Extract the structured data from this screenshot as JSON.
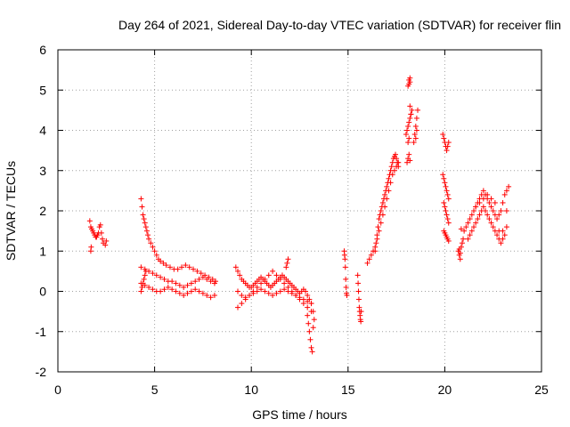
{
  "chart_data": {
    "type": "scatter",
    "title": "Day 264 of 2021, Sidereal Day-to-day VTEC variation (SDTVAR) for receiver flin",
    "xlabel": "GPS time / hours",
    "ylabel": "SDTVAR / TECUs",
    "xlim": [
      0,
      25
    ],
    "ylim": [
      -2,
      6
    ],
    "xticks": [
      0,
      5,
      10,
      15,
      20,
      25
    ],
    "yticks": [
      -2,
      -1,
      0,
      1,
      2,
      3,
      4,
      5,
      6
    ],
    "xtick_labels": [
      "0",
      "5",
      "10",
      "15",
      "20",
      "25"
    ],
    "ytick_labels": [
      "-2",
      "-1",
      "0",
      "1",
      "2",
      "3",
      "4",
      "5",
      "6"
    ],
    "grid": true,
    "marker": "+",
    "color": "#ff0000",
    "series": [
      {
        "name": "SDTVAR",
        "x": [
          1.65,
          1.7,
          1.75,
          1.8,
          1.85,
          1.9,
          1.95,
          2.0,
          2.05,
          2.1,
          2.15,
          2.2,
          2.25,
          2.3,
          2.35,
          2.45,
          2.5,
          1.7,
          1.72,
          4.3,
          4.35,
          4.4,
          4.45,
          4.5,
          4.55,
          4.6,
          4.65,
          4.7,
          4.8,
          4.9,
          5.0,
          5.1,
          5.2,
          5.3,
          5.45,
          5.6,
          5.8,
          6.0,
          6.2,
          6.4,
          6.6,
          6.8,
          7.0,
          7.2,
          7.4,
          7.6,
          7.8,
          8.0,
          8.15,
          4.3,
          4.5,
          4.7,
          4.9,
          5.1,
          5.3,
          5.5,
          5.7,
          5.9,
          6.1,
          6.3,
          6.5,
          6.7,
          6.9,
          7.1,
          7.3,
          7.5,
          7.7,
          7.9,
          8.1,
          4.3,
          4.5,
          4.7,
          4.9,
          5.1,
          5.3,
          5.5,
          5.7,
          5.9,
          6.1,
          6.3,
          6.5,
          6.7,
          6.9,
          7.1,
          7.3,
          7.5,
          7.7,
          7.9,
          8.1,
          4.3,
          4.35,
          4.4,
          4.45,
          4.5,
          4.55,
          9.2,
          9.3,
          9.4,
          9.5,
          9.6,
          9.7,
          9.8,
          9.9,
          10.0,
          10.1,
          10.2,
          10.3,
          10.4,
          10.5,
          10.6,
          10.7,
          10.8,
          10.9,
          11.0,
          11.1,
          11.2,
          11.3,
          11.4,
          11.5,
          11.6,
          11.7,
          11.8,
          11.9,
          12.0,
          12.1,
          12.2,
          12.3,
          12.4,
          12.5,
          12.6,
          12.7,
          12.8,
          12.9,
          13.0,
          13.1,
          13.2,
          9.3,
          9.5,
          9.7,
          9.9,
          10.1,
          10.3,
          10.5,
          10.7,
          10.9,
          11.1,
          11.3,
          11.5,
          11.7,
          11.9,
          12.1,
          12.3,
          12.5,
          12.7,
          12.9,
          13.1,
          9.3,
          9.5,
          9.7,
          9.9,
          10.1,
          10.3,
          10.5,
          10.7,
          10.9,
          11.1,
          11.3,
          11.5,
          11.7,
          11.9,
          12.1,
          12.3,
          12.5,
          12.7,
          12.9,
          13.1,
          12.9,
          12.95,
          13.0,
          13.05,
          13.1,
          13.15,
          13.2,
          13.25,
          11.8,
          11.85,
          11.9,
          14.8,
          14.82,
          14.84,
          14.86,
          14.88,
          14.9,
          14.92,
          14.94,
          15.5,
          15.52,
          15.54,
          15.56,
          15.58,
          15.6,
          15.62,
          15.64,
          15.66,
          15.68,
          16.0,
          16.1,
          16.2,
          16.3,
          16.4,
          16.5,
          16.6,
          16.7,
          16.8,
          16.9,
          17.0,
          17.1,
          17.2,
          17.3,
          17.4,
          17.5,
          17.6,
          16.4,
          16.45,
          16.5,
          16.55,
          16.6,
          16.65,
          16.7,
          16.75,
          16.8,
          16.85,
          16.9,
          16.95,
          17.0,
          17.05,
          17.1,
          17.15,
          17.2,
          17.25,
          17.3,
          17.35,
          17.4,
          17.45,
          17.5,
          17.55,
          17.6,
          18.0,
          18.05,
          18.1,
          18.15,
          18.2,
          18.25,
          18.3,
          18.05,
          18.1,
          18.15,
          18.2,
          18.1,
          18.15,
          18.2,
          18.15,
          18.2,
          18.2,
          18.25,
          18.1,
          18.15,
          18.4,
          18.45,
          18.5,
          18.55,
          18.6,
          18.5,
          18.55,
          19.9,
          19.95,
          20.0,
          20.05,
          20.1,
          20.15,
          20.2,
          19.9,
          19.95,
          20.0,
          20.05,
          20.1,
          20.15,
          20.2,
          19.95,
          20.0,
          20.05,
          20.1,
          20.15,
          20.2,
          19.95,
          20.0,
          20.05,
          20.1,
          20.15,
          20.2,
          20.7,
          20.75,
          20.8,
          20.85,
          20.9,
          20.95,
          21.0,
          20.75,
          20.8,
          20.85,
          21.1,
          21.2,
          21.3,
          21.4,
          21.5,
          21.6,
          21.7,
          21.8,
          21.9,
          22.0,
          22.1,
          22.2,
          22.3,
          22.4,
          22.5,
          22.6,
          22.7,
          22.8,
          22.9,
          23.0,
          23.1,
          23.2,
          23.3,
          21.2,
          21.3,
          21.4,
          21.5,
          21.6,
          21.7,
          21.8,
          21.9,
          22.0,
          22.1,
          22.2,
          22.3,
          22.4,
          22.5,
          22.6,
          22.7,
          22.8,
          22.9,
          23.0,
          23.1,
          23.2,
          21.6,
          21.8,
          22.0,
          22.2,
          22.4,
          22.6,
          22.8,
          23.0,
          23.2
        ],
        "y": [
          1.75,
          1.6,
          1.55,
          1.5,
          1.45,
          1.4,
          1.35,
          1.35,
          1.4,
          1.45,
          1.6,
          1.65,
          1.45,
          1.3,
          1.2,
          1.15,
          1.25,
          1.0,
          1.1,
          2.3,
          2.1,
          1.9,
          1.8,
          1.7,
          1.6,
          1.5,
          1.4,
          1.3,
          1.2,
          1.1,
          1.0,
          0.9,
          0.8,
          0.75,
          0.7,
          0.65,
          0.6,
          0.55,
          0.55,
          0.6,
          0.65,
          0.6,
          0.55,
          0.5,
          0.45,
          0.4,
          0.35,
          0.3,
          0.25,
          0.6,
          0.55,
          0.5,
          0.45,
          0.4,
          0.35,
          0.3,
          0.25,
          0.25,
          0.2,
          0.15,
          0.1,
          0.15,
          0.2,
          0.25,
          0.3,
          0.35,
          0.3,
          0.25,
          0.2,
          0.2,
          0.15,
          0.1,
          0.05,
          0.0,
          0.0,
          0.05,
          0.1,
          0.05,
          0.0,
          -0.05,
          -0.1,
          -0.05,
          0.0,
          0.05,
          0.0,
          -0.05,
          -0.1,
          -0.15,
          -0.1,
          0.0,
          0.1,
          0.2,
          0.3,
          0.4,
          0.5,
          0.6,
          0.5,
          0.4,
          0.3,
          0.25,
          0.2,
          0.15,
          0.1,
          0.1,
          0.15,
          0.2,
          0.25,
          0.3,
          0.35,
          0.3,
          0.25,
          0.2,
          0.15,
          0.1,
          0.15,
          0.2,
          0.25,
          0.3,
          0.35,
          0.4,
          0.35,
          0.3,
          0.25,
          0.2,
          0.15,
          0.1,
          0.05,
          0.0,
          -0.05,
          0.0,
          0.05,
          0.0,
          -0.1,
          -0.2,
          -0.3,
          -0.5,
          0.0,
          -0.1,
          -0.15,
          -0.1,
          -0.05,
          0.0,
          0.05,
          0.0,
          -0.05,
          -0.1,
          -0.05,
          0.0,
          0.05,
          0.0,
          -0.05,
          -0.1,
          -0.15,
          -0.2,
          -0.25,
          -0.3,
          -0.4,
          -0.3,
          -0.2,
          -0.1,
          0.0,
          0.1,
          0.2,
          0.3,
          0.4,
          0.5,
          0.4,
          0.3,
          0.2,
          0.1,
          0.0,
          -0.1,
          -0.2,
          -0.3,
          -0.4,
          -0.5,
          -0.6,
          -0.8,
          -1.0,
          -1.2,
          -1.4,
          -1.5,
          -0.9,
          -0.7,
          0.6,
          0.7,
          0.8,
          1.0,
          0.9,
          0.8,
          0.6,
          0.3,
          0.1,
          -0.05,
          -0.1,
          0.4,
          0.2,
          0.0,
          -0.2,
          -0.4,
          -0.5,
          -0.6,
          -0.7,
          -0.75,
          -0.5,
          0.7,
          0.8,
          0.9,
          1.0,
          1.1,
          1.3,
          1.5,
          1.7,
          1.9,
          2.1,
          2.3,
          2.5,
          2.7,
          2.9,
          3.0,
          3.1,
          3.2,
          1.0,
          1.2,
          1.4,
          1.6,
          1.8,
          1.9,
          2.0,
          2.1,
          2.2,
          2.3,
          2.4,
          2.5,
          2.6,
          2.7,
          2.8,
          2.9,
          3.0,
          3.1,
          3.2,
          3.3,
          3.35,
          3.4,
          3.3,
          3.2,
          3.1,
          3.9,
          4.0,
          4.1,
          4.2,
          4.3,
          4.4,
          4.5,
          3.2,
          3.3,
          3.4,
          3.25,
          5.1,
          5.15,
          5.2,
          5.25,
          5.3,
          4.6,
          4.4,
          3.7,
          3.8,
          3.7,
          3.9,
          4.1,
          4.3,
          4.5,
          3.8,
          4.0,
          3.9,
          3.8,
          3.7,
          3.6,
          3.5,
          3.6,
          3.7,
          2.9,
          2.8,
          2.7,
          2.6,
          2.5,
          2.4,
          2.3,
          2.2,
          2.1,
          2.0,
          1.9,
          1.8,
          1.7,
          1.5,
          1.45,
          1.4,
          1.35,
          1.3,
          1.25,
          1.0,
          0.9,
          0.8,
          1.1,
          1.2,
          1.3,
          1.5,
          1.05,
          0.95,
          1.55,
          1.6,
          1.7,
          1.8,
          1.9,
          2.0,
          2.1,
          2.2,
          2.3,
          2.4,
          2.5,
          2.4,
          2.3,
          2.2,
          2.1,
          2.0,
          1.9,
          1.8,
          1.9,
          2.0,
          2.2,
          2.4,
          2.5,
          2.6,
          1.3,
          1.4,
          1.5,
          1.6,
          1.7,
          1.8,
          1.9,
          2.0,
          2.1,
          2.0,
          1.9,
          1.8,
          1.7,
          1.6,
          1.5,
          1.4,
          1.3,
          1.2,
          1.3,
          1.4,
          1.6,
          2.1,
          2.2,
          2.3,
          2.4,
          2.3,
          2.2,
          1.5,
          1.5,
          2.0
        ]
      }
    ]
  }
}
